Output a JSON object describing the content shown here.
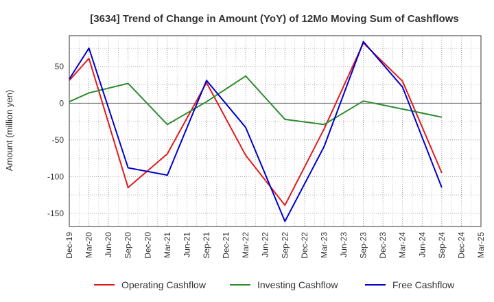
{
  "chart_data": {
    "type": "line",
    "title": "[3634]  Trend of Change in Amount (YoY) of 12Mo Moving Sum of Cashflows",
    "xlabel": "",
    "ylabel": "Amount (million yen)",
    "ylim": [
      -168,
      92
    ],
    "yticks": [
      50,
      0,
      -50,
      -100,
      -150
    ],
    "categories": [
      "Dec-19",
      "Mar-20",
      "Jun-20",
      "Sep-20",
      "Dec-20",
      "Mar-21",
      "Jun-21",
      "Sep-21",
      "Dec-21",
      "Mar-22",
      "Jun-22",
      "Sep-22",
      "Dec-22",
      "Mar-23",
      "Jun-23",
      "Sep-23",
      "Dec-23",
      "Mar-24",
      "Jun-24",
      "Sep-24",
      "Dec-24",
      "Mar-25"
    ],
    "grid": true,
    "legend_position": "bottom",
    "series": [
      {
        "name": "Operating Cashflow",
        "color": "#e31a1c",
        "points": [
          [
            0,
            31
          ],
          [
            1,
            61
          ],
          [
            3,
            -115
          ],
          [
            5,
            -69
          ],
          [
            7,
            28
          ],
          [
            9,
            -71
          ],
          [
            11,
            -139
          ],
          [
            13,
            -35
          ],
          [
            15,
            82
          ],
          [
            17,
            30
          ],
          [
            19,
            -95
          ]
        ]
      },
      {
        "name": "Investing Cashflow",
        "color": "#2e8b2e",
        "points": [
          [
            0,
            2
          ],
          [
            1,
            14
          ],
          [
            3,
            27
          ],
          [
            5,
            -29
          ],
          [
            7,
            2
          ],
          [
            9,
            37
          ],
          [
            11,
            -22
          ],
          [
            13,
            -29
          ],
          [
            15,
            3
          ],
          [
            17,
            -8
          ],
          [
            19,
            -19
          ]
        ]
      },
      {
        "name": "Free Cashflow",
        "color": "#0000cc",
        "points": [
          [
            0,
            33
          ],
          [
            1,
            75
          ],
          [
            3,
            -88
          ],
          [
            5,
            -98
          ],
          [
            7,
            31
          ],
          [
            9,
            -33
          ],
          [
            11,
            -161
          ],
          [
            13,
            -59
          ],
          [
            15,
            84
          ],
          [
            17,
            22
          ],
          [
            19,
            -115
          ]
        ]
      }
    ]
  }
}
